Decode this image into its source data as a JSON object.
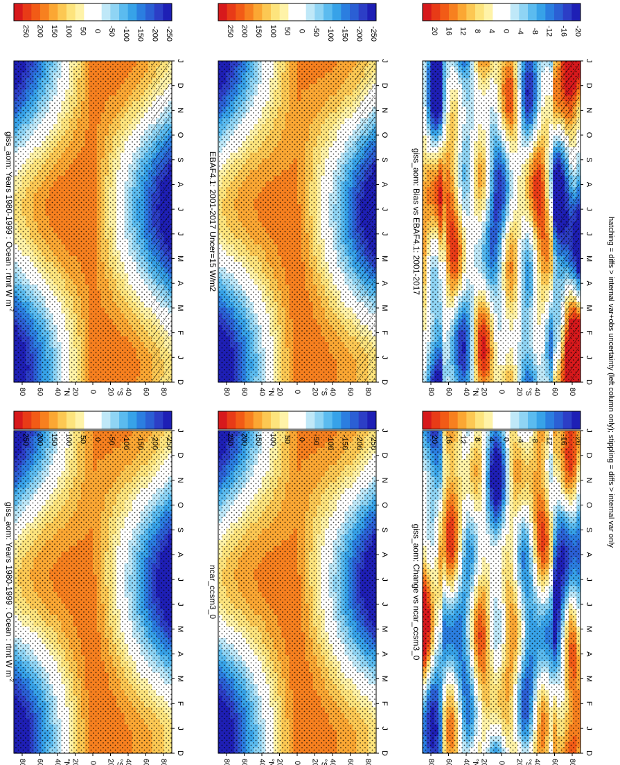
{
  "figure": {
    "footnote": "hatching = diffs > internal var+obs uncertainty (left column only); stippling = diffs > internal var only",
    "orientation": "rotated 90 degrees clockwise",
    "layout": "2 columns x 3 rows"
  },
  "colorbars": {
    "abs": {
      "labels": [
        "250",
        "200",
        "150",
        "100",
        "50",
        "0",
        "-50",
        "-100",
        "-150",
        "-200",
        "-250"
      ],
      "colors": [
        "#d7191c",
        "#e83b17",
        "#f25b16",
        "#f7801f",
        "#fba733",
        "#fcc853",
        "#fde47d",
        "#fff3a8",
        "#ffffff",
        "#ffffff",
        "#bfe8f8",
        "#8fd4f4",
        "#5bbbef",
        "#37a2e8",
        "#2b7ee0",
        "#2b5fd4",
        "#2c3ec6",
        "#1e1fb5"
      ]
    },
    "diff": {
      "labels": [
        "20",
        "16",
        "12",
        "8",
        "4",
        "0",
        "-4",
        "-8",
        "-12",
        "-16",
        "-20"
      ],
      "colors": [
        "#d7191c",
        "#e83b17",
        "#f25b16",
        "#f7801f",
        "#fba733",
        "#fcc853",
        "#fde47d",
        "#fff3a8",
        "#ffffff",
        "#ffffff",
        "#bfe8f8",
        "#8fd4f4",
        "#5bbbef",
        "#37a2e8",
        "#2b7ee0",
        "#2b5fd4",
        "#2c3ec6",
        "#1e1fb5"
      ]
    }
  },
  "chart_data": [
    {
      "type": "heatmap",
      "id": "left-top",
      "title": "giss_aom: Years 1980-1999 : Ocean : rtmt W m",
      "title_superscript": "-2",
      "x": [
        "D",
        "J",
        "F",
        "M",
        "A",
        "M",
        "J",
        "J",
        "A",
        "S",
        "O",
        "N",
        "D",
        "J"
      ],
      "y_ticks": [
        "80",
        "60",
        "40",
        "20",
        "0",
        "20",
        "40",
        "60",
        "80"
      ],
      "y_mid_labels": [
        "°N",
        "°S"
      ],
      "variable": "annual cycle of ocean net TOA radiation by latitude",
      "range": [
        -250,
        250
      ],
      "stippling": true,
      "hatching": true,
      "colorbar": "abs"
    },
    {
      "type": "heatmap",
      "id": "left-mid",
      "title": "EBAF4.1: 2001-2017 Uncer=15 W/m2",
      "x": [
        "D",
        "J",
        "F",
        "M",
        "A",
        "M",
        "J",
        "J",
        "A",
        "S",
        "O",
        "N",
        "D",
        "J"
      ],
      "y_ticks": [
        "80",
        "60",
        "40",
        "20",
        "0",
        "20",
        "40",
        "60",
        "80"
      ],
      "y_mid_labels": [
        "°N",
        "°S"
      ],
      "range": [
        -250,
        250
      ],
      "stippling": true,
      "hatching": true,
      "colorbar": "abs"
    },
    {
      "type": "heatmap",
      "id": "left-bot",
      "title": "giss_aom: Bias vs EBAF4.1: 2001-2017",
      "x": [
        "D",
        "J",
        "F",
        "M",
        "A",
        "M",
        "J",
        "J",
        "A",
        "S",
        "O",
        "N",
        "D",
        "J"
      ],
      "y_ticks": [
        "80",
        "60",
        "40",
        "20",
        "0",
        "20",
        "40",
        "60",
        "80"
      ],
      "y_mid_labels": [
        "°N",
        "°S"
      ],
      "range": [
        -20,
        20
      ],
      "stippling": true,
      "hatching": true,
      "colorbar": "diff"
    },
    {
      "type": "heatmap",
      "id": "right-top",
      "title": "giss_aom: Years 1980-1999 : Ocean : rtmt W m",
      "title_superscript": "-2",
      "x": [
        "D",
        "J",
        "F",
        "M",
        "A",
        "M",
        "J",
        "J",
        "A",
        "S",
        "O",
        "N",
        "D",
        "J"
      ],
      "y_ticks": [
        "80",
        "60",
        "40",
        "20",
        "0",
        "20",
        "40",
        "60",
        "80"
      ],
      "y_mid_labels": [
        "°N",
        "°S"
      ],
      "range": [
        -250,
        250
      ],
      "stippling": true,
      "hatching": false,
      "colorbar": "abs"
    },
    {
      "type": "heatmap",
      "id": "right-mid",
      "title": "ncar_ccsm3_0",
      "x": [
        "D",
        "J",
        "F",
        "M",
        "A",
        "M",
        "J",
        "J",
        "A",
        "S",
        "O",
        "N",
        "D",
        "J"
      ],
      "y_ticks": [
        "80",
        "60",
        "40",
        "20",
        "0",
        "20",
        "40",
        "60",
        "80"
      ],
      "y_mid_labels": [
        "°N",
        "°S"
      ],
      "range": [
        -250,
        250
      ],
      "stippling": true,
      "hatching": false,
      "colorbar": "abs"
    },
    {
      "type": "heatmap",
      "id": "right-bot",
      "title": "giss_aom: Change vs ncar_ccsm3_0",
      "x": [
        "D",
        "J",
        "F",
        "M",
        "A",
        "M",
        "J",
        "J",
        "A",
        "S",
        "O",
        "N",
        "D",
        "J"
      ],
      "y_ticks": [
        "80",
        "60",
        "40",
        "20",
        "0",
        "20",
        "40",
        "60",
        "80"
      ],
      "y_mid_labels": [
        "°N",
        "°S"
      ],
      "range": [
        -20,
        20
      ],
      "stippling": true,
      "hatching": false,
      "colorbar": "diff"
    }
  ]
}
